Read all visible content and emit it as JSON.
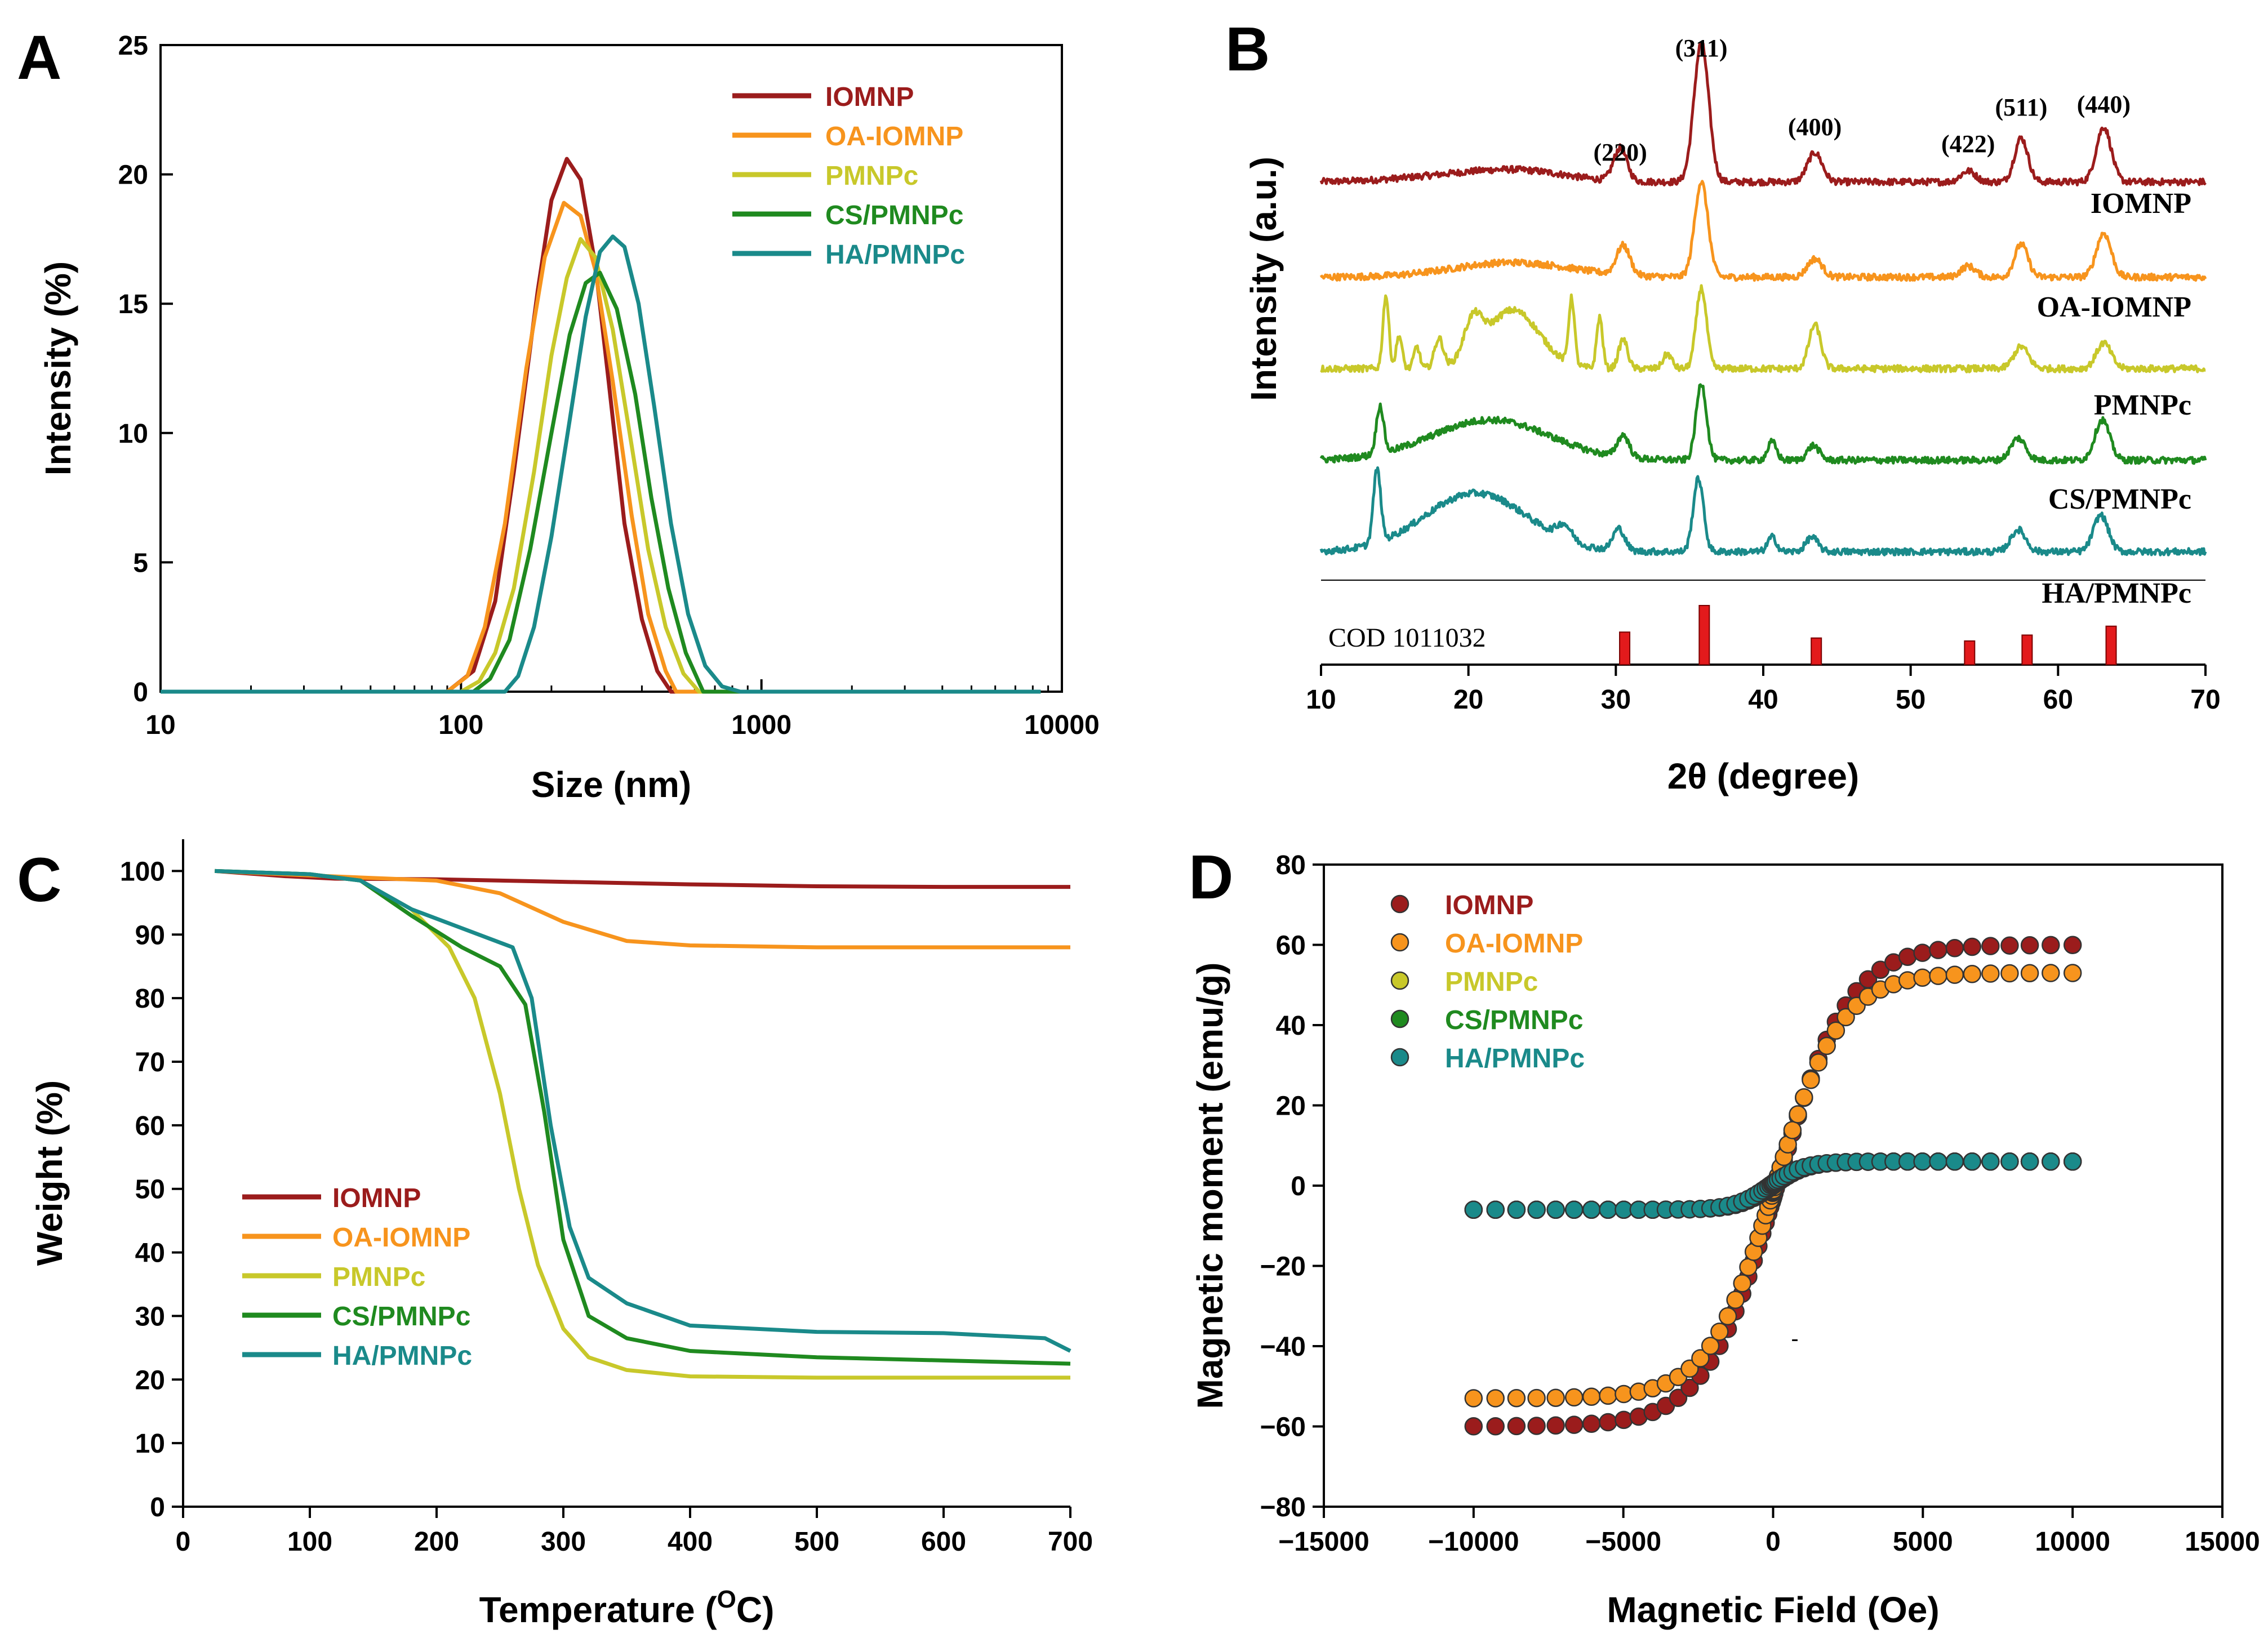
{
  "series_names": [
    "IOMNP",
    "OA-IOMNP",
    "PMNPc",
    "CS/PMNPc",
    "HA/PMNPc"
  ],
  "series_colors": [
    "#9b1c1c",
    "#f7941d",
    "#c8c82a",
    "#1f8a1f",
    "#1a8a8a"
  ],
  "chart_data": [
    {
      "panel": "A",
      "type": "line",
      "xscale": "log",
      "xlabel": "Size (nm)",
      "ylabel": "Intensity (%)",
      "xlim": [
        10,
        10000
      ],
      "ylim": [
        0,
        25
      ],
      "xticks": [
        10,
        100,
        1000,
        10000
      ],
      "xtick_labels": [
        "10",
        "100",
        "1000",
        "10000"
      ],
      "yticks": [
        0,
        5,
        10,
        15,
        20,
        25
      ],
      "ytick_labels": [
        "0",
        "5",
        "10",
        "15",
        "20",
        "25"
      ],
      "legend_position": "top-right",
      "series": [
        {
          "name": "IOMNP",
          "x": [
            10,
            90,
            110,
            130,
            150,
            180,
            200,
            225,
            250,
            280,
            310,
            350,
            400,
            450,
            500,
            1000,
            8500
          ],
          "y": [
            0,
            0,
            0.8,
            3.5,
            8.5,
            15.5,
            19.0,
            20.6,
            19.8,
            16.5,
            12.0,
            6.5,
            2.8,
            0.8,
            0,
            0,
            0
          ]
        },
        {
          "name": "OA-IOMNP",
          "x": [
            10,
            90,
            105,
            120,
            140,
            165,
            190,
            220,
            250,
            280,
            320,
            370,
            420,
            480,
            520,
            1000,
            8500
          ],
          "y": [
            0,
            0,
            0.6,
            2.5,
            6.5,
            12.5,
            16.8,
            18.9,
            18.4,
            16.3,
            12.0,
            6.8,
            3.0,
            0.8,
            0,
            0,
            0
          ]
        },
        {
          "name": "PMNPc",
          "x": [
            10,
            100,
            115,
            130,
            150,
            175,
            200,
            225,
            250,
            280,
            320,
            370,
            420,
            480,
            550,
            620,
            1000,
            8500
          ],
          "y": [
            0,
            0,
            0.4,
            1.5,
            4.0,
            8.5,
            13.0,
            16.0,
            17.5,
            16.8,
            14.0,
            9.5,
            5.5,
            2.5,
            0.7,
            0,
            0,
            0
          ]
        },
        {
          "name": "CS/PMNPc",
          "x": [
            10,
            110,
            125,
            145,
            170,
            200,
            230,
            260,
            290,
            330,
            380,
            430,
            490,
            560,
            640,
            1000,
            8500
          ],
          "y": [
            0,
            0,
            0.5,
            2.0,
            5.5,
            10.0,
            13.8,
            15.8,
            16.2,
            14.8,
            11.5,
            7.5,
            4.0,
            1.5,
            0,
            0,
            0
          ]
        },
        {
          "name": "HA/PMNPc",
          "x": [
            10,
            140,
            155,
            175,
            200,
            230,
            260,
            290,
            320,
            350,
            390,
            440,
            500,
            570,
            650,
            740,
            850,
            1000,
            8500
          ],
          "y": [
            0,
            0,
            0.6,
            2.5,
            6.0,
            10.5,
            14.5,
            17.0,
            17.6,
            17.2,
            15.0,
            11.0,
            6.5,
            3.0,
            1.0,
            0.2,
            0,
            0,
            0
          ]
        }
      ]
    },
    {
      "panel": "B",
      "type": "line",
      "xlabel": "2θ (degree)",
      "ylabel": "Intensity (a.u.)",
      "xlim": [
        10,
        70
      ],
      "xticks": [
        10,
        20,
        30,
        40,
        50,
        60,
        70
      ],
      "xtick_labels": [
        "10",
        "20",
        "30",
        "40",
        "50",
        "60",
        "70"
      ],
      "peak_labels": [
        {
          "x": 30.3,
          "text": "(220)"
        },
        {
          "x": 35.8,
          "text": "(311)"
        },
        {
          "x": 43.5,
          "text": "(400)"
        },
        {
          "x": 53.9,
          "text": "(422)"
        },
        {
          "x": 57.5,
          "text": "(511)"
        },
        {
          "x": 63.1,
          "text": "(440)"
        }
      ],
      "reference": {
        "label": "COD 1011032",
        "positions": [
          30.6,
          36.0,
          43.6,
          54.0,
          57.9,
          63.6
        ],
        "heights": [
          0.55,
          1.0,
          0.45,
          0.4,
          0.5,
          0.65
        ]
      },
      "series": [
        {
          "name": "IOMNP",
          "baseline": 5.3,
          "peaks": [
            [
              20,
              4,
              0.1
            ],
            [
              24,
              3,
              0.1
            ],
            [
              30.3,
              0.45,
              0.45
            ],
            [
              35.8,
              0.5,
              1.9
            ],
            [
              43.5,
              0.5,
              0.4
            ],
            [
              53.9,
              0.5,
              0.15
            ],
            [
              57.5,
              0.45,
              0.6
            ],
            [
              63.1,
              0.5,
              0.75
            ]
          ]
        },
        {
          "name": "OA-IOMNP",
          "baseline": 4.0,
          "peaks": [
            [
              23,
              4,
              0.2
            ],
            [
              30.5,
              0.45,
              0.4
            ],
            [
              35.8,
              0.45,
              1.3
            ],
            [
              43.5,
              0.5,
              0.25
            ],
            [
              53.9,
              0.5,
              0.15
            ],
            [
              57.5,
              0.45,
              0.45
            ],
            [
              63.1,
              0.5,
              0.6
            ]
          ]
        },
        {
          "name": "PMNPc",
          "baseline": 2.75,
          "peaks": [
            [
              14.4,
              0.2,
              1.0
            ],
            [
              15.3,
              0.2,
              0.45
            ],
            [
              16.5,
              0.2,
              0.3
            ],
            [
              18.0,
              0.3,
              0.4
            ],
            [
              20.3,
              0.6,
              0.5
            ],
            [
              23.0,
              1.8,
              0.8
            ],
            [
              27.0,
              0.2,
              0.9
            ],
            [
              28.9,
              0.2,
              0.7
            ],
            [
              30.5,
              0.3,
              0.4
            ],
            [
              33.5,
              0.3,
              0.2
            ],
            [
              35.8,
              0.35,
              1.1
            ],
            [
              43.5,
              0.4,
              0.6
            ],
            [
              57.5,
              0.5,
              0.3
            ],
            [
              63.1,
              0.5,
              0.35
            ]
          ]
        },
        {
          "name": "CS/PMNPc",
          "baseline": 1.5,
          "peaks": [
            [
              14.0,
              0.25,
              0.65
            ],
            [
              21.5,
              4.0,
              0.55
            ],
            [
              30.5,
              0.4,
              0.3
            ],
            [
              35.8,
              0.35,
              1.05
            ],
            [
              40.6,
              0.3,
              0.25
            ],
            [
              43.4,
              0.4,
              0.2
            ],
            [
              57.3,
              0.5,
              0.3
            ],
            [
              63.0,
              0.5,
              0.55
            ]
          ]
        },
        {
          "name": "HA/PMNPc",
          "baseline": 0.25,
          "peaks": [
            [
              13.8,
              0.25,
              1.0
            ],
            [
              20.5,
              3.5,
              0.8
            ],
            [
              26.5,
              0.5,
              0.2
            ],
            [
              30.2,
              0.4,
              0.3
            ],
            [
              35.6,
              0.35,
              1.0
            ],
            [
              40.6,
              0.3,
              0.2
            ],
            [
              43.3,
              0.4,
              0.2
            ],
            [
              57.3,
              0.5,
              0.3
            ],
            [
              62.9,
              0.5,
              0.5
            ]
          ]
        }
      ]
    },
    {
      "panel": "C",
      "type": "line",
      "xlabel": "Temperature (",
      "xlabel_sup": "O",
      "xlabel_end": "C)",
      "ylabel": "Weight (%)",
      "xlim": [
        0,
        700
      ],
      "ylim": [
        0,
        105
      ],
      "xticks": [
        0,
        100,
        200,
        300,
        400,
        500,
        600,
        700
      ],
      "xtick_labels": [
        "0",
        "100",
        "200",
        "300",
        "400",
        "500",
        "600",
        "700"
      ],
      "yticks": [
        0,
        10,
        20,
        30,
        40,
        50,
        60,
        70,
        80,
        90,
        100
      ],
      "ytick_labels": [
        "0",
        "10",
        "20",
        "30",
        "40",
        "50",
        "60",
        "70",
        "80",
        "90",
        "100"
      ],
      "legend_position": "lower-left",
      "series": [
        {
          "name": "IOMNP",
          "x": [
            25,
            80,
            120,
            200,
            300,
            400,
            500,
            600,
            700
          ],
          "y": [
            100,
            99.2,
            98.8,
            98.7,
            98.3,
            97.9,
            97.6,
            97.5,
            97.5
          ]
        },
        {
          "name": "OA-IOMNP",
          "x": [
            25,
            100,
            200,
            250,
            300,
            350,
            400,
            500,
            600,
            700
          ],
          "y": [
            100,
            99.3,
            98.5,
            96.5,
            92.0,
            89.0,
            88.3,
            88.0,
            88.0,
            88.0
          ]
        },
        {
          "name": "PMNPc",
          "x": [
            25,
            100,
            140,
            180,
            210,
            230,
            250,
            265,
            280,
            300,
            320,
            350,
            400,
            500,
            600,
            700
          ],
          "y": [
            100,
            99.5,
            98.5,
            94.0,
            88.0,
            80.0,
            65.0,
            50.0,
            38.0,
            28.0,
            23.5,
            21.5,
            20.5,
            20.3,
            20.3,
            20.3
          ]
        },
        {
          "name": "CS/PMNPc",
          "x": [
            25,
            100,
            140,
            180,
            220,
            250,
            270,
            285,
            300,
            320,
            350,
            400,
            500,
            600,
            700
          ],
          "y": [
            100,
            99.5,
            98.5,
            93.0,
            88.0,
            85.0,
            79.0,
            62.0,
            42.0,
            30.0,
            26.5,
            24.5,
            23.5,
            23.0,
            22.5
          ]
        },
        {
          "name": "HA/PMNPc",
          "x": [
            25,
            100,
            140,
            180,
            220,
            260,
            275,
            290,
            305,
            320,
            350,
            400,
            500,
            600,
            680,
            700
          ],
          "y": [
            100,
            99.5,
            98.5,
            94.0,
            91.0,
            88.0,
            80.0,
            60.0,
            44.0,
            36.0,
            32.0,
            28.5,
            27.5,
            27.3,
            26.5,
            24.5
          ]
        }
      ]
    },
    {
      "panel": "D",
      "type": "scatter",
      "xlabel": "Magnetic Field (Oe)",
      "ylabel": "Magnetic moment (emu/g)",
      "xlim": [
        -15000,
        15000
      ],
      "ylim": [
        -80,
        80
      ],
      "xticks": [
        -15000,
        -10000,
        -5000,
        0,
        5000,
        10000,
        15000
      ],
      "xtick_labels": [
        "−15000",
        "−10000",
        "−5000",
        "0",
        "5000",
        "10000",
        "15000"
      ],
      "yticks": [
        -80,
        -60,
        -40,
        -20,
        0,
        20,
        40,
        60,
        80
      ],
      "ytick_labels": [
        "−80",
        "−60",
        "−40",
        "−20",
        "0",
        "20",
        "40",
        "60",
        "80"
      ],
      "legend_position": "top-left",
      "series": [
        {
          "name": "IOMNP",
          "Ms": 60,
          "k": 0.0012,
          "points": 60
        },
        {
          "name": "OA-IOMNP",
          "Ms": 53,
          "k": 0.0013,
          "points": 60
        },
        {
          "name": "PMNPc",
          "Ms": 6,
          "k": 0.0025,
          "points": 60
        },
        {
          "name": "CS/PMNPc",
          "Ms": 6,
          "k": 0.0025,
          "points": 60
        },
        {
          "name": "HA/PMNPc",
          "Ms": 6,
          "k": 0.0025,
          "points": 60
        }
      ]
    }
  ],
  "panel_letters": [
    "A",
    "B",
    "C",
    "D"
  ],
  "stray_mark": "-"
}
